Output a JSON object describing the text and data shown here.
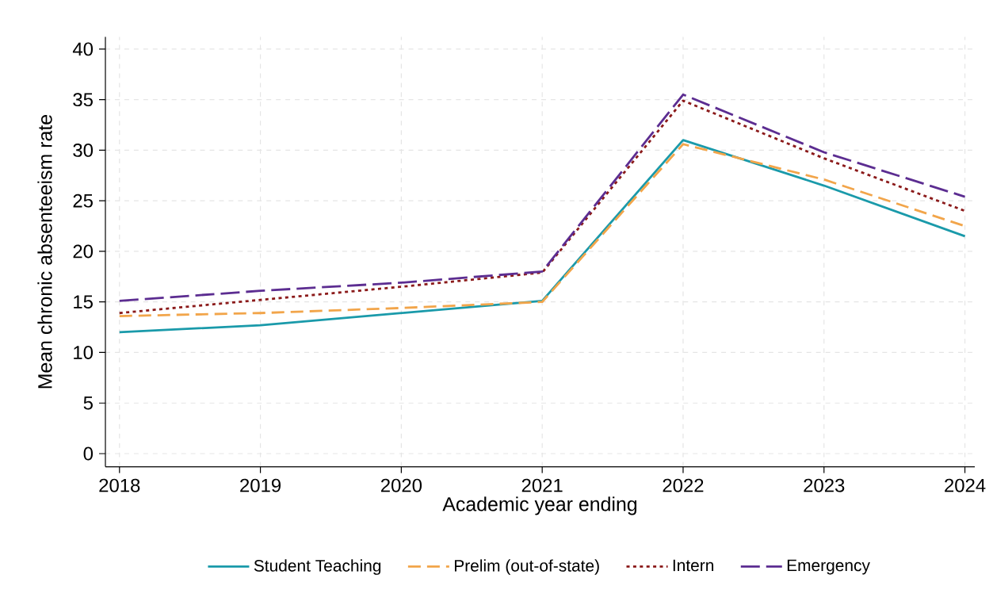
{
  "chart_data": {
    "type": "line",
    "xlabel": "Academic year ending",
    "ylabel": "Mean chronic absenteeism rate",
    "x": [
      2018,
      2019,
      2020,
      2021,
      2022,
      2023,
      2024
    ],
    "series": [
      {
        "name": "Student Teaching",
        "color": "#1a9aaa",
        "line_style": "solid",
        "values": [
          12.0,
          12.7,
          13.9,
          15.1,
          31.0,
          26.5,
          21.5
        ]
      },
      {
        "name": "Prelim (out-of-state)",
        "color": "#f2a54a",
        "line_style": "dashed",
        "values": [
          13.6,
          13.9,
          14.4,
          15.0,
          30.6,
          27.1,
          22.5
        ]
      },
      {
        "name": "Intern",
        "color": "#8b1a1a",
        "line_style": "dotted",
        "values": [
          13.9,
          15.2,
          16.5,
          17.9,
          34.9,
          29.2,
          24.0
        ]
      },
      {
        "name": "Emergency",
        "color": "#5c2d91",
        "line_style": "dashed",
        "values": [
          15.1,
          16.1,
          16.9,
          18.0,
          35.5,
          29.8,
          25.4
        ]
      }
    ],
    "xlim": [
      2017.9,
      2024.07
    ],
    "ylim": [
      -1.3,
      41.2
    ],
    "xticks": [
      2018,
      2019,
      2020,
      2021,
      2022,
      2023,
      2024
    ],
    "yticks": [
      0,
      5,
      10,
      15,
      20,
      25,
      30,
      35,
      40
    ],
    "grid": true,
    "legend": "bottom",
    "marker": "none"
  }
}
